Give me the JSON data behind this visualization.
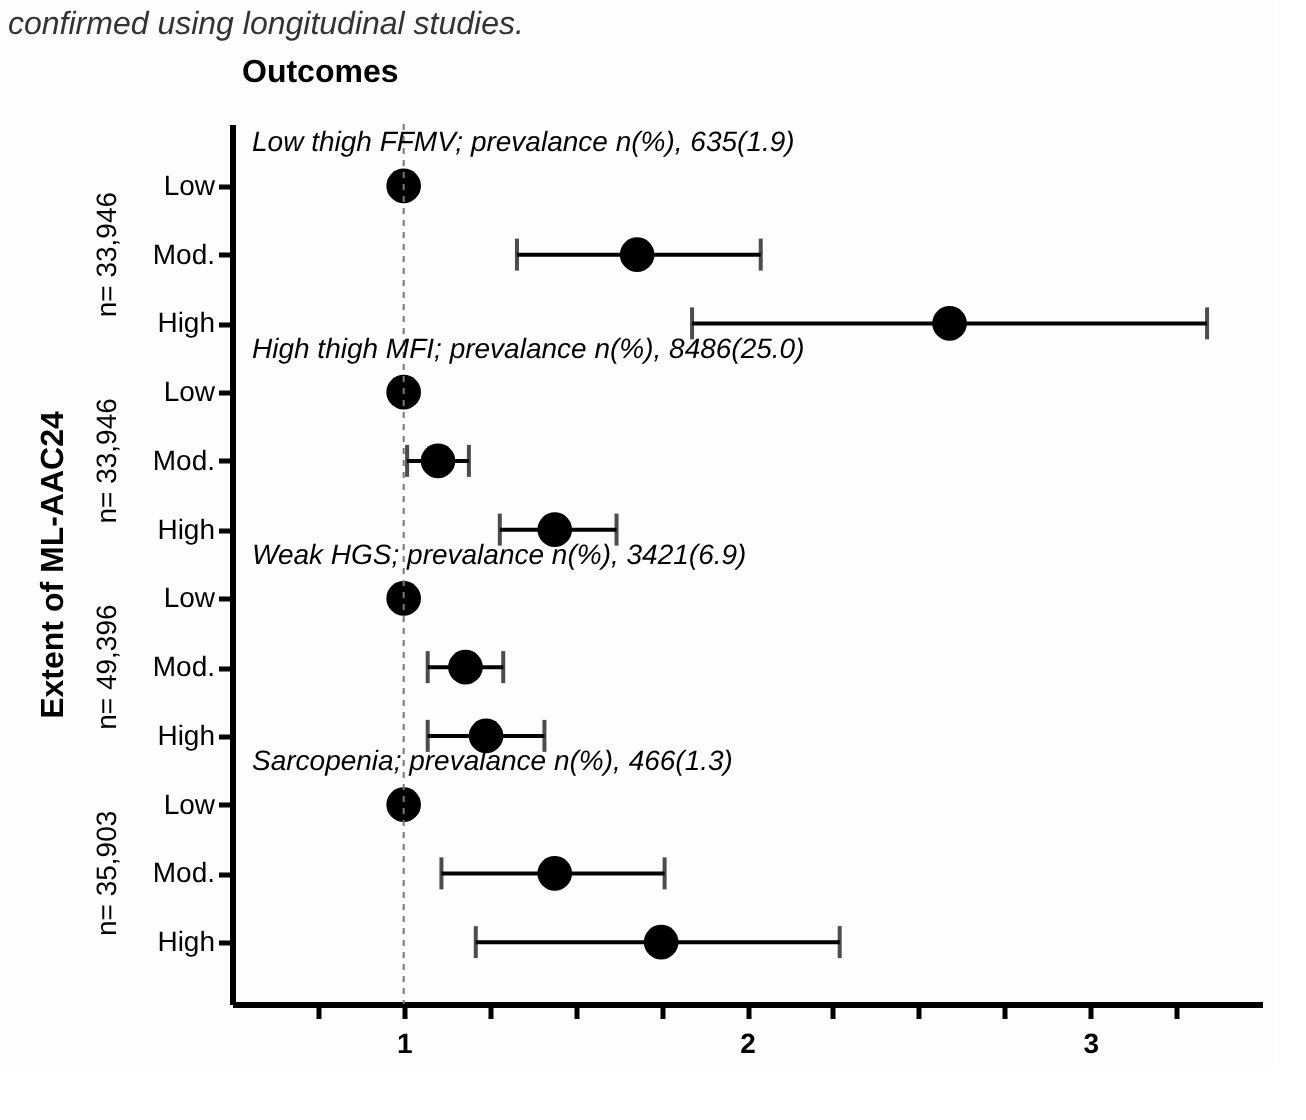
{
  "chart_data": {
    "type": "scatter",
    "title": "Outcomes",
    "ylabel": "Extent of ML-AAC24",
    "annotations": [
      "confirmed using longitudinal studies.",
      "Low thigh FFMV; prevalance n(%), 635(1.9)",
      "High thigh MFI; prevalance n(%), 8486(25.0)",
      "Weak HGS; prevalance n(%), 3421(6.9)",
      "Sarcopenia; prevalance n(%), 466(1.3)",
      "n= 33,946",
      "n= 33,946",
      "n= 49,396",
      "n= 35,903"
    ],
    "categories": [
      "Low",
      "Mod.",
      "High",
      "Low",
      "Mod.",
      "High",
      "Low",
      "Mod.",
      "High",
      "Low",
      "Mod.",
      "High"
    ],
    "values": [
      1,
      1.68,
      2.59,
      1,
      1.1,
      1.44,
      1,
      1.18,
      1.24,
      1,
      1.44,
      1.75
    ],
    "errors": [
      null,
      [
        1.33,
        2.04
      ],
      [
        1.84,
        3.34
      ],
      null,
      [
        1.01,
        1.19
      ],
      [
        1.28,
        1.62
      ],
      null,
      [
        1.07,
        1.29
      ],
      [
        1.07,
        1.41
      ],
      null,
      [
        1.11,
        1.76
      ],
      [
        1.21,
        2.27
      ]
    ],
    "color": "#000000",
    "marker": "circle",
    "orientation": "horizontal",
    "xlim": [
      0.5,
      3.5
    ],
    "xticks": [
      {
        "value": 0.75,
        "label": null
      },
      1,
      {
        "value": 1.25,
        "label": null
      },
      {
        "value": 1.5,
        "label": null
      },
      {
        "value": 1.75,
        "label": null
      },
      2,
      {
        "value": 2.25,
        "label": null
      },
      {
        "value": 2.5,
        "label": null
      },
      {
        "value": 2.75,
        "label": null
      },
      3,
      {
        "value": 3.25,
        "label": null
      }
    ],
    "ref_lines": [
      {
        "axis": "x",
        "value": 1,
        "color": "#777777",
        "line_style": "dashed"
      }
    ],
    "grid": false
  }
}
